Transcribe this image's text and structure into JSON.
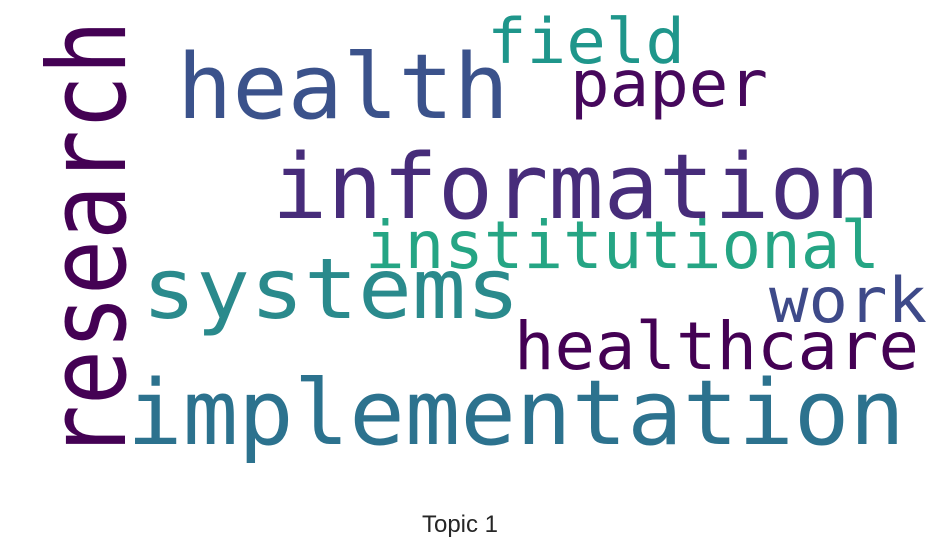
{
  "chart_data": {
    "type": "wordcloud",
    "title": "Topic 1",
    "words": [
      {
        "text": "research",
        "color": "#440154"
      },
      {
        "text": "health",
        "color": "#3b528b"
      },
      {
        "text": "field",
        "color": "#1f968b"
      },
      {
        "text": "paper",
        "color": "#46085c"
      },
      {
        "text": "information",
        "color": "#472c7a"
      },
      {
        "text": "institutional",
        "color": "#25a584"
      },
      {
        "text": "systems",
        "color": "#2a8a8c"
      },
      {
        "text": "work",
        "color": "#3e4a89"
      },
      {
        "text": "healthcare",
        "color": "#440154"
      },
      {
        "text": "implementation",
        "color": "#2c728e"
      }
    ]
  }
}
